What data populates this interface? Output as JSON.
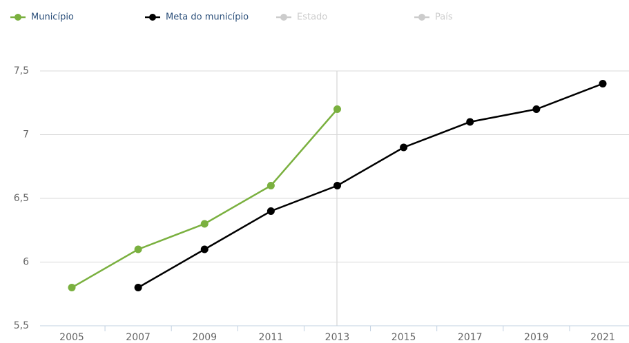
{
  "chart_data": {
    "type": "line",
    "categories": [
      "2005",
      "2007",
      "2009",
      "2011",
      "2013",
      "2015",
      "2017",
      "2019",
      "2021"
    ],
    "series": [
      {
        "name": "Município",
        "color": "#7ab03f",
        "values": [
          5.8,
          6.1,
          6.3,
          6.6,
          7.2,
          null,
          null,
          null,
          null
        ]
      },
      {
        "name": "Meta do município",
        "color": "#000000",
        "values": [
          null,
          5.8,
          6.1,
          6.4,
          6.6,
          6.9,
          7.1,
          7.2,
          7.4
        ]
      },
      {
        "name": "Estado",
        "color": "#cccccc",
        "values": [
          null,
          null,
          null,
          null,
          null,
          null,
          null,
          null,
          null
        ]
      },
      {
        "name": "País",
        "color": "#cccccc",
        "values": [
          null,
          null,
          null,
          null,
          null,
          null,
          null,
          null,
          null
        ]
      }
    ],
    "ylim": [
      5.5,
      7.5
    ],
    "yticks": [
      {
        "value": 5.5,
        "label": "5,5"
      },
      6,
      {
        "value": 6.5,
        "label": "6,5"
      },
      7,
      {
        "value": 7.5,
        "label": "7,5"
      }
    ],
    "grid": true
  }
}
